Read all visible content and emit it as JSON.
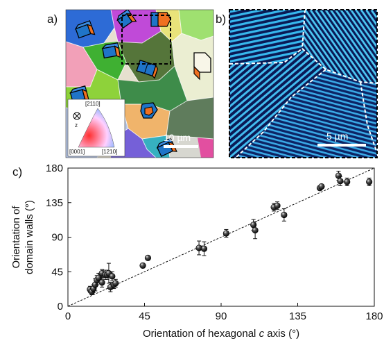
{
  "panels": {
    "a": {
      "label": "a)",
      "scale_bar": "10 µm",
      "ipf_key": {
        "direction": "z",
        "top": "[2110]",
        "bottom_left": "[0001]",
        "bottom_right": "[1210]"
      }
    },
    "b": {
      "label": "b)",
      "scale_bar": "5 µm"
    },
    "c": {
      "label": "c)"
    }
  },
  "colors": {
    "grain_palette": [
      "#2d6bd6",
      "#8ed23a",
      "#c85fd0",
      "#f0b46b",
      "#e8e8c8",
      "#36b0c0",
      "#5fa350",
      "#f2a0b8",
      "#b7c7e6"
    ],
    "pfm_dark": "#0a1a55",
    "pfm_light": "#37b8ee",
    "data_point": "#111111"
  },
  "chart_data": {
    "type": "scatter",
    "xlabel": "Orientation of hexagonal c axis (°)",
    "ylabel": [
      "Orientation of",
      "domain walls (°)"
    ],
    "xlim": [
      0,
      180
    ],
    "ylim": [
      0,
      180
    ],
    "xticks": [
      0,
      45,
      90,
      135,
      180
    ],
    "yticks": [
      0,
      45,
      90,
      135,
      180
    ],
    "fit_line": {
      "style": "dashed",
      "x": [
        0,
        180
      ],
      "y": [
        0,
        180
      ]
    },
    "series": [
      {
        "x": [
          13,
          14,
          15,
          16,
          17,
          18,
          20,
          20,
          22,
          23,
          24,
          25,
          26,
          27,
          28,
          44,
          47,
          77,
          80,
          93,
          109,
          110,
          121,
          123,
          127,
          148,
          149,
          159,
          160,
          164,
          177
        ],
        "y": [
          22,
          19,
          23,
          28,
          34,
          37,
          31,
          43,
          41,
          41,
          43,
          25,
          39,
          28,
          30,
          53,
          63,
          76,
          75,
          95,
          106,
          99,
          129,
          131,
          119,
          154,
          156,
          170,
          163,
          162,
          162
        ],
        "yerr": [
          4,
          4,
          5,
          8,
          6,
          6,
          6,
          5,
          6,
          6,
          13,
          6,
          6,
          5,
          5,
          3,
          2,
          9,
          9,
          5,
          7,
          11,
          5,
          5,
          8,
          2,
          2,
          6,
          6,
          5,
          5
        ]
      }
    ]
  }
}
